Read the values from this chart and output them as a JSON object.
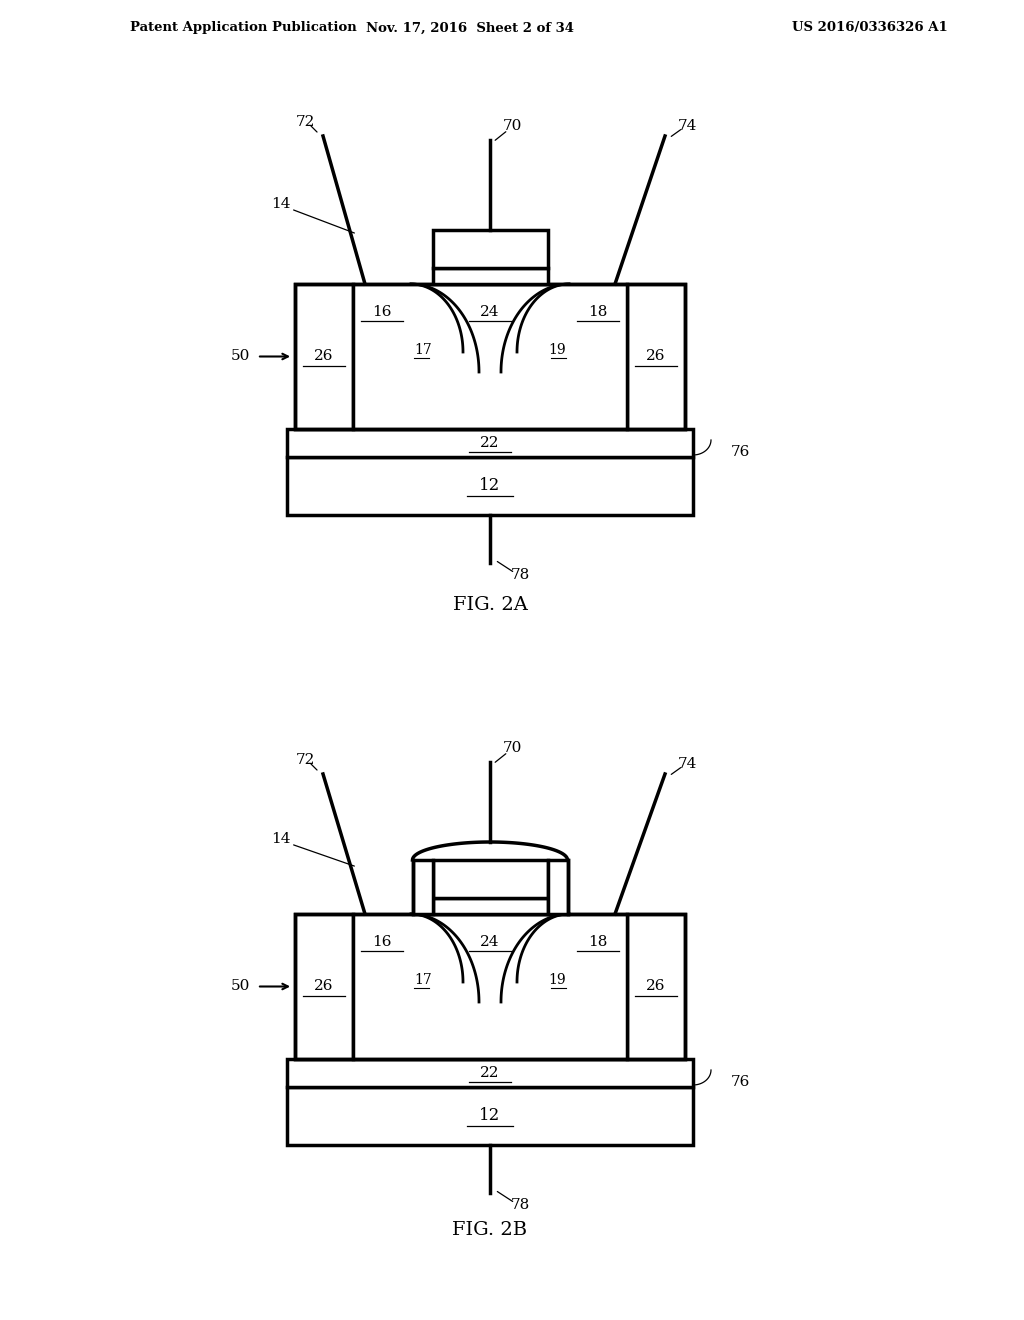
{
  "bg_color": "#ffffff",
  "line_color": "#000000",
  "header_text_left": "Patent Application Publication",
  "header_text_mid": "Nov. 17, 2016  Sheet 2 of 34",
  "header_text_right": "US 2016/0336326 A1",
  "fig2a_caption": "FIG. 2A",
  "fig2b_caption": "FIG. 2B",
  "fig_width": 10.24,
  "fig_height": 13.2,
  "dpi": 100
}
